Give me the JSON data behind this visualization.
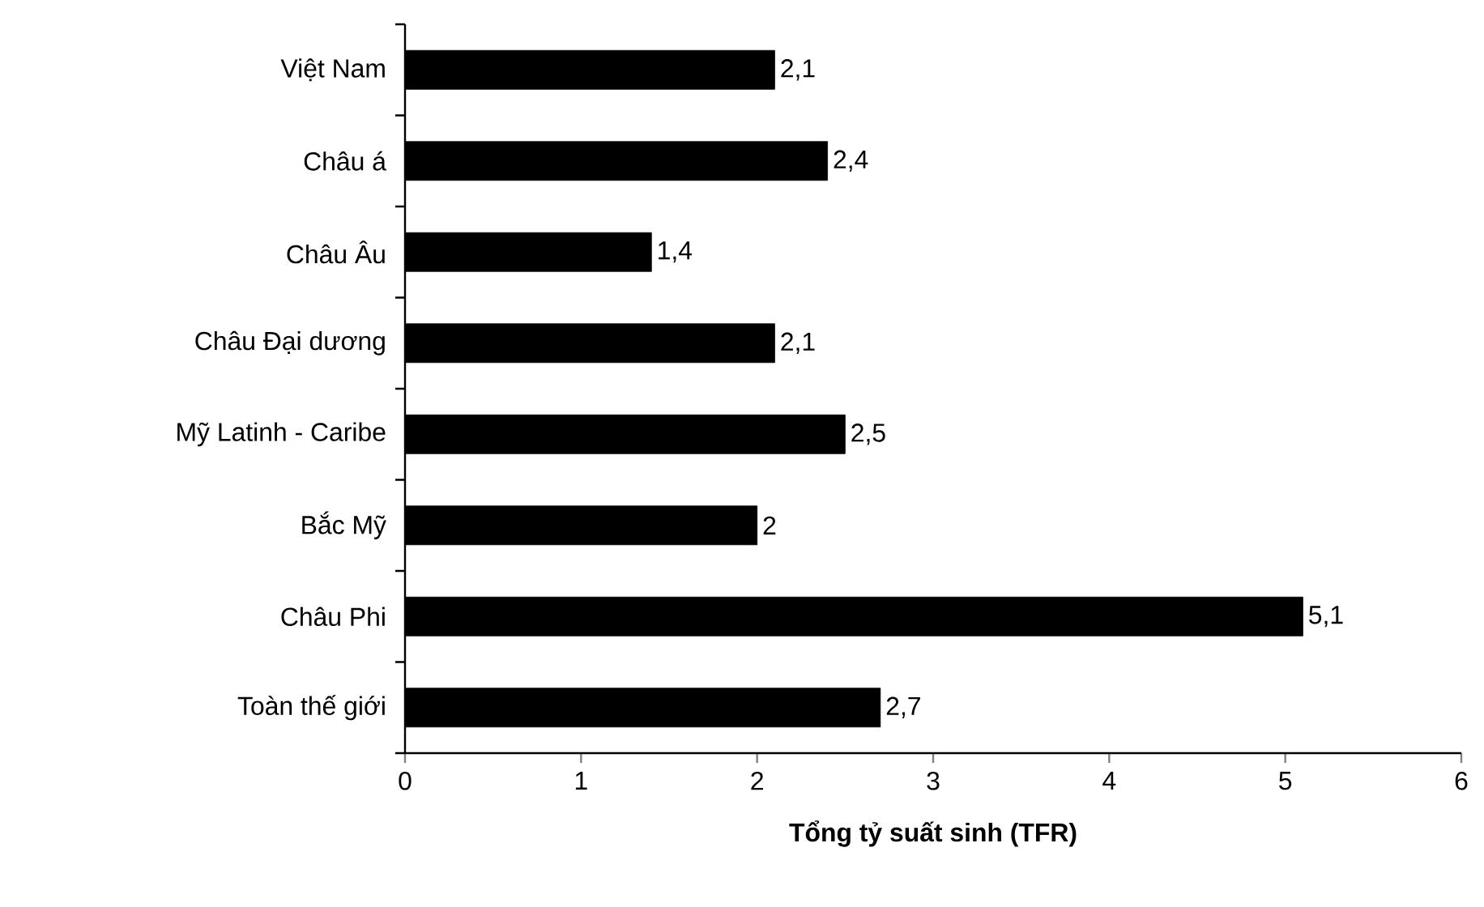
{
  "chart_data": {
    "type": "bar",
    "orientation": "horizontal",
    "xlabel": "Tổng tỷ suất sinh (TFR)",
    "categories": [
      "Việt Nam",
      "Châu á",
      "Châu Âu",
      "Châu Đại dương",
      "Mỹ Latinh - Caribe",
      "Bắc Mỹ",
      "Châu Phi",
      "Toàn thế giới"
    ],
    "values": [
      2.1,
      2.4,
      1.4,
      2.1,
      2.5,
      2.0,
      5.1,
      2.7
    ],
    "value_labels": [
      "2,1",
      "2,4",
      "1,4",
      "2,1",
      "2,5",
      "2",
      "5,1",
      "2,7"
    ],
    "color": "#000000",
    "xlim": [
      0,
      6
    ],
    "xticks": [
      0,
      1,
      2,
      3,
      4,
      5,
      6
    ],
    "grid": false
  }
}
